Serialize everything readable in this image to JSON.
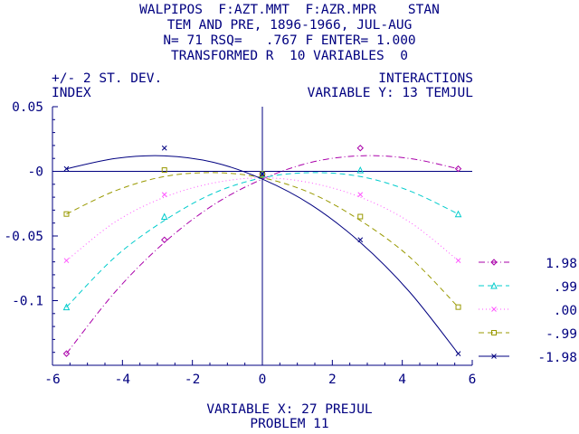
{
  "header": {
    "line1": "WALPIPOS  F:AZT.MMT  F:AZR.MPR    STAN",
    "line2": "TEM AND PRE, 1896-1966, JUL-AUG",
    "line3": "N= 71 RSQ=   .767 F ENTER= 1.000",
    "line4": "TRANSFORMED R  10 VARIABLES  0"
  },
  "labels": {
    "left_top": "+/- 2 ST. DEV.",
    "left_sub": "INDEX",
    "right_top": "INTERACTIONS",
    "right_sub": "VARIABLE Y: 13 TEMJUL",
    "xlabel": "VARIABLE X: 27 PREJUL",
    "footer": "PROBLEM 11"
  },
  "chart_data": {
    "type": "line",
    "xlim": [
      -6,
      6
    ],
    "ylim": [
      -0.15,
      0.05
    ],
    "x_ticks": [
      -6,
      -4,
      -2,
      0,
      2,
      4,
      6
    ],
    "y_ticks": [
      0.05,
      0,
      -0.05,
      -0.1
    ],
    "x_tick_labels": [
      "-6",
      "-4",
      "-2",
      "0",
      "2",
      "4",
      "6"
    ],
    "y_tick_labels": [
      "0.05",
      "-0",
      "-0.05",
      "-0.1"
    ],
    "grid": false,
    "legend_position": "right",
    "x_points": [
      -5.6,
      -2.8,
      0,
      2.8,
      5.6
    ],
    "series": [
      {
        "name": "1.98",
        "color": "#aa00aa",
        "dash": "dashdot",
        "marker": "diamond",
        "values": [
          -0.141,
          -0.053,
          -0.002,
          0.018,
          0.002
        ],
        "curve": [
          [
            -5.6,
            -0.141
          ],
          [
            -4.2,
            -0.093
          ],
          [
            -2.8,
            -0.055
          ],
          [
            -1.4,
            -0.026
          ],
          [
            0,
            -0.006
          ],
          [
            1.4,
            0.007
          ],
          [
            2.8,
            0.012
          ],
          [
            4.2,
            0.01
          ],
          [
            5.6,
            0.002
          ]
        ]
      },
      {
        "name": ".99",
        "color": "#00cccc",
        "dash": "dashed",
        "marker": "triangle",
        "values": [
          -0.105,
          -0.035,
          -0.002,
          0.001,
          -0.033
        ],
        "curve": [
          [
            -5.6,
            -0.105
          ],
          [
            -4.2,
            -0.066
          ],
          [
            -2.8,
            -0.038
          ],
          [
            -1.4,
            -0.017
          ],
          [
            0,
            -0.005
          ],
          [
            1.4,
            -0.001
          ],
          [
            2.8,
            -0.004
          ],
          [
            4.2,
            -0.015
          ],
          [
            5.6,
            -0.033
          ]
        ]
      },
      {
        "name": ".00",
        "color": "#ff55ff",
        "dash": "dotted",
        "marker": "x",
        "values": [
          -0.069,
          -0.018,
          -0.002,
          -0.018,
          -0.069
        ],
        "curve": [
          [
            -5.6,
            -0.069
          ],
          [
            -4.2,
            -0.039
          ],
          [
            -2.8,
            -0.02
          ],
          [
            -1.4,
            -0.009
          ],
          [
            0,
            -0.005
          ],
          [
            1.4,
            -0.009
          ],
          [
            2.8,
            -0.02
          ],
          [
            4.2,
            -0.039
          ],
          [
            5.6,
            -0.069
          ]
        ]
      },
      {
        "name": "-.99",
        "color": "#999900",
        "dash": "dashed",
        "marker": "square",
        "values": [
          -0.033,
          0.001,
          -0.002,
          -0.035,
          -0.105
        ],
        "curve": [
          [
            -5.6,
            -0.033
          ],
          [
            -4.2,
            -0.015
          ],
          [
            -2.8,
            -0.004
          ],
          [
            -1.4,
            -0.001
          ],
          [
            0,
            -0.005
          ],
          [
            1.4,
            -0.017
          ],
          [
            2.8,
            -0.038
          ],
          [
            4.2,
            -0.066
          ],
          [
            5.6,
            -0.105
          ]
        ]
      },
      {
        "name": "-1.98",
        "color": "#000080",
        "dash": "solid",
        "marker": "x",
        "values": [
          0.002,
          0.018,
          -0.002,
          -0.053,
          -0.141
        ],
        "curve": [
          [
            -5.6,
            0.002
          ],
          [
            -4.2,
            0.01
          ],
          [
            -2.8,
            0.012
          ],
          [
            -1.4,
            0.007
          ],
          [
            0,
            -0.006
          ],
          [
            1.4,
            -0.026
          ],
          [
            2.8,
            -0.055
          ],
          [
            4.2,
            -0.093
          ],
          [
            5.6,
            -0.141
          ]
        ]
      }
    ]
  }
}
